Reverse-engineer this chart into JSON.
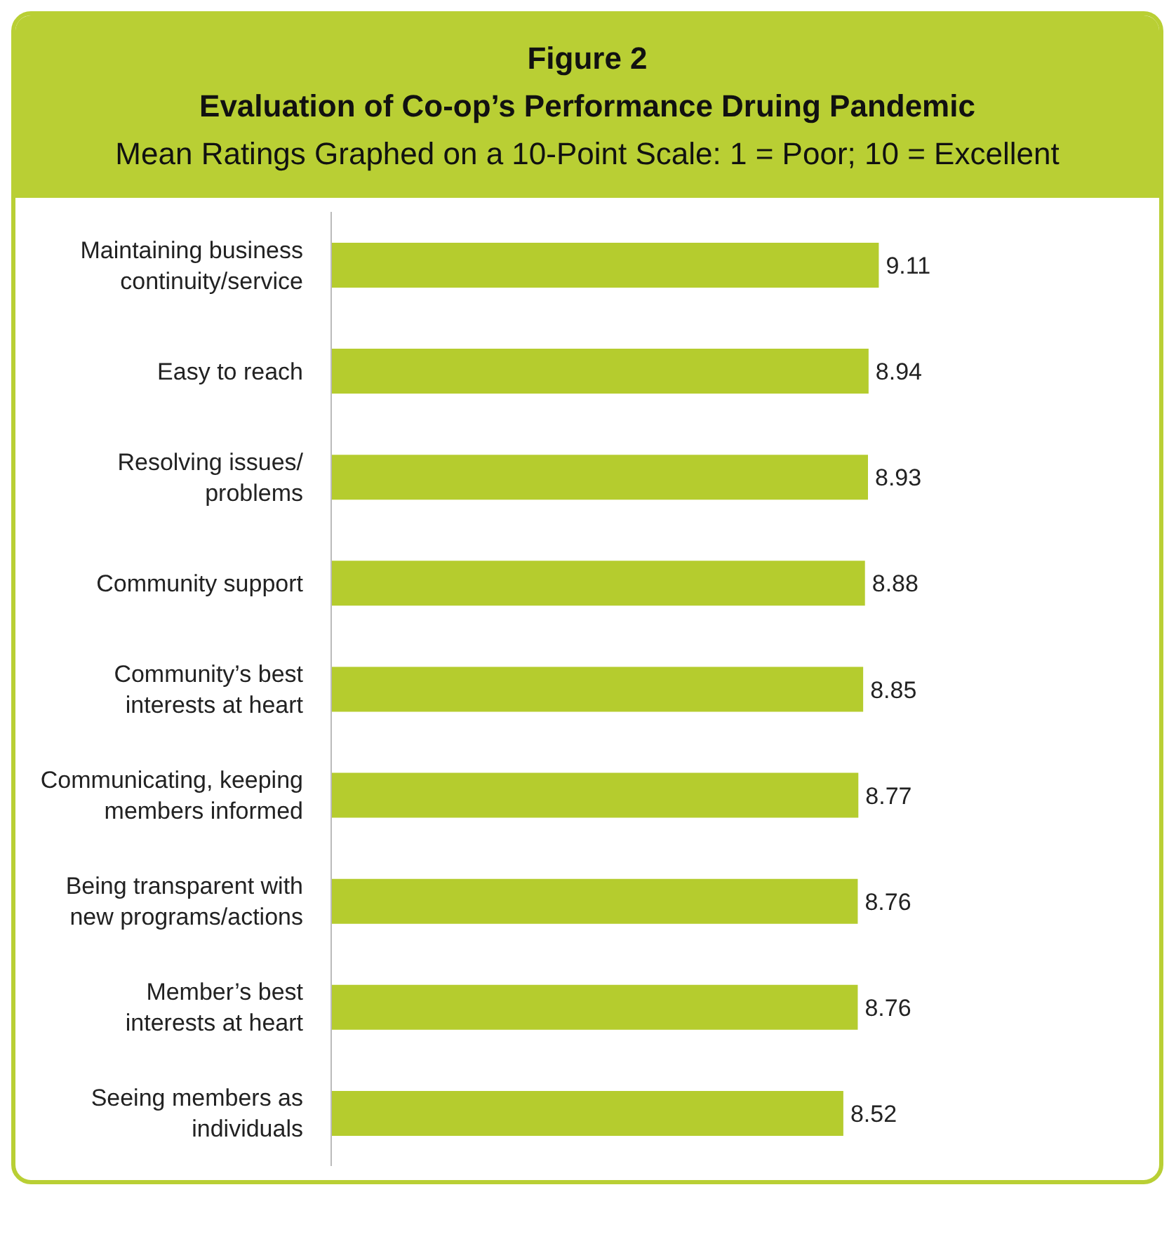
{
  "chart_data": {
    "type": "bar",
    "orientation": "horizontal",
    "title": "Figure 2\nEvaluation of Co-op’s Performance Druing Pandemic",
    "subtitle": "Mean Ratings Graphed on a 10-Point Scale: 1 = Poor; 10 = Excellent",
    "categories": [
      "Maintaining business continuity/service",
      "Easy to reach",
      "Resolving issues/ problems",
      "Community support",
      "Community’s best interests at heart",
      "Communicating, keeping members informed",
      "Being transparent with new programs/actions",
      "Member’s best interests at heart",
      "Seeing members as individuals"
    ],
    "values": [
      9.11,
      8.94,
      8.93,
      8.88,
      8.85,
      8.77,
      8.76,
      8.76,
      8.52
    ],
    "color": "#b5cc2e",
    "data_labels": true,
    "tick_labels": "y"
  }
}
